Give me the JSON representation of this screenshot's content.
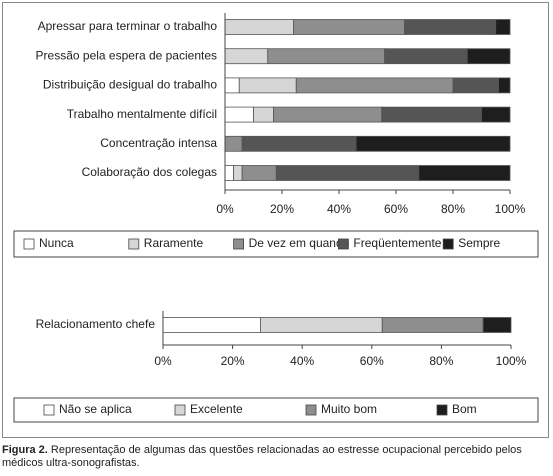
{
  "chart_data": [
    {
      "type": "stacked-bar",
      "orientation": "horizontal",
      "categories": [
        "Apressar para terminar o trabalho",
        "Pressão pela espera de pacientes",
        "Distribuição desigual do trabalho",
        "Trabalho mentalmente difícil",
        "Concentração intensa",
        "Colaboração dos colegas"
      ],
      "series": [
        {
          "name": "Nunca",
          "color": "#ffffff",
          "values": [
            0,
            0,
            5,
            10,
            0,
            3
          ]
        },
        {
          "name": "Raramente",
          "color": "#d6d6d6",
          "values": [
            24,
            15,
            20,
            7,
            0,
            3
          ]
        },
        {
          "name": "De vez em quando",
          "color": "#8e8e8e",
          "values": [
            39,
            41,
            55,
            38,
            6,
            12
          ]
        },
        {
          "name": "Freqüentemente",
          "color": "#555555",
          "values": [
            32,
            29,
            16,
            35,
            40,
            50
          ]
        },
        {
          "name": "Sempre",
          "color": "#1e1e1e",
          "values": [
            5,
            15,
            4,
            10,
            54,
            32
          ]
        }
      ],
      "xlim": [
        0,
        100
      ],
      "xticks": [
        {
          "value": 0,
          "label": "0%"
        },
        {
          "value": 20,
          "label": "20%"
        },
        {
          "value": 40,
          "label": "40%"
        },
        {
          "value": 60,
          "label": "60%"
        },
        {
          "value": 80,
          "label": "80%"
        },
        {
          "value": 100,
          "label": "100%"
        }
      ],
      "legend": "bottom",
      "grid": false
    },
    {
      "type": "stacked-bar",
      "orientation": "horizontal",
      "categories": [
        "Relacionamento chefe"
      ],
      "series": [
        {
          "name": "Não se aplica",
          "color": "#ffffff",
          "values": [
            28
          ]
        },
        {
          "name": "Excelente",
          "color": "#d6d6d6",
          "values": [
            35
          ]
        },
        {
          "name": "Muito bom",
          "color": "#8e8e8e",
          "values": [
            29
          ]
        },
        {
          "name": "Bom",
          "color": "#1e1e1e",
          "values": [
            8
          ]
        }
      ],
      "xlim": [
        0,
        100
      ],
      "xticks": [
        {
          "value": 0,
          "label": "0%"
        },
        {
          "value": 20,
          "label": "20%"
        },
        {
          "value": 40,
          "label": "40%"
        },
        {
          "value": 60,
          "label": "60%"
        },
        {
          "value": 80,
          "label": "80%"
        },
        {
          "value": 100,
          "label": "100%"
        }
      ],
      "legend": "bottom",
      "grid": false
    }
  ],
  "caption": {
    "label": "Figura 2.",
    "text": "Representação de algumas das questões relacionadas ao estresse ocupacional percebido pelos médicos ultra-sonografistas."
  }
}
